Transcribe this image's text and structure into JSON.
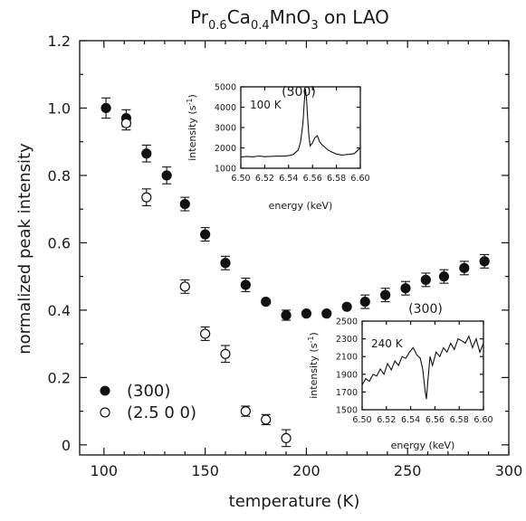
{
  "chart_data": [
    {
      "type": "scatter",
      "title": "Pr",
      "title_parts": {
        "base1": "Pr",
        "sub1": "0.6",
        "base2": "Ca",
        "sub2": "0.4",
        "base3": "MnO",
        "sub3": "3",
        "suffix": " on LAO"
      },
      "xlabel": "temperature (K)",
      "ylabel": "normalized peak intensity",
      "xlim": [
        88,
        300
      ],
      "ylim": [
        -0.03,
        1.2
      ],
      "xticks": [
        100,
        150,
        200,
        250,
        300
      ],
      "xtick_labels": [
        "100",
        "150",
        "200",
        "250",
        "300"
      ],
      "yticks": [
        0,
        0.2,
        0.4,
        0.6,
        0.8,
        1.0,
        1.2
      ],
      "ytick_labels": [
        "0",
        "0.2",
        "0.4",
        "0.6",
        "0.8",
        "1.0",
        "1.2"
      ],
      "grid": false,
      "legend_position": "bottom-left",
      "series": [
        {
          "name": "(300)",
          "marker": "filled-circle",
          "x": [
            101,
            111,
            121,
            131,
            140,
            150,
            160,
            170,
            180,
            190,
            200,
            210,
            220,
            229,
            239,
            249,
            259,
            268,
            278,
            288
          ],
          "y": [
            1.0,
            0.97,
            0.865,
            0.8,
            0.715,
            0.625,
            0.54,
            0.475,
            0.425,
            0.385,
            0.39,
            0.39,
            0.41,
            0.425,
            0.445,
            0.465,
            0.49,
            0.5,
            0.525,
            0.545
          ],
          "err": [
            0.03,
            0.025,
            0.025,
            0.025,
            0.02,
            0.02,
            0.02,
            0.02,
            0,
            0.015,
            0,
            0,
            0,
            0.02,
            0.02,
            0.02,
            0.02,
            0.02,
            0.02,
            0.02
          ]
        },
        {
          "name": "(2.5 0 0)",
          "marker": "open-circle",
          "x": [
            111,
            121,
            140,
            150,
            160,
            170,
            180,
            190
          ],
          "y": [
            0.955,
            0.735,
            0.47,
            0.33,
            0.27,
            0.1,
            0.075,
            0.02
          ],
          "err": [
            0.02,
            0.025,
            0.02,
            0.02,
            0.025,
            0.015,
            0.015,
            0.025
          ]
        }
      ]
    },
    {
      "type": "line",
      "title": "(300)",
      "annotation": "100 K",
      "xlabel": "energy (keV)",
      "ylabel": "intensity (s",
      "ylabel_superscript": "-1",
      "ylabel_suffix": ")",
      "xlim": [
        6.5,
        6.6
      ],
      "ylim": [
        1000,
        5000
      ],
      "xtick_labels": [
        "6.50",
        "6.52",
        "6.54",
        "6.56",
        "6.58",
        "6.60"
      ],
      "ytick_labels": [
        "1000",
        "2000",
        "3000",
        "4000",
        "5000"
      ],
      "xticks": [
        6.5,
        6.52,
        6.54,
        6.56,
        6.58,
        6.6
      ],
      "yticks": [
        1000,
        2000,
        3000,
        4000,
        5000
      ],
      "x": [
        6.5,
        6.505,
        6.51,
        6.515,
        6.52,
        6.525,
        6.53,
        6.535,
        6.54,
        6.544,
        6.548,
        6.55,
        6.552,
        6.553,
        6.554,
        6.555,
        6.556,
        6.557,
        6.558,
        6.56,
        6.562,
        6.564,
        6.566,
        6.568,
        6.57,
        6.573,
        6.576,
        6.58,
        6.585,
        6.59,
        6.595,
        6.598,
        6.6
      ],
      "y": [
        1550,
        1580,
        1560,
        1600,
        1570,
        1580,
        1600,
        1590,
        1620,
        1680,
        1900,
        2300,
        3200,
        4200,
        4900,
        4400,
        3400,
        2600,
        2100,
        2250,
        2500,
        2600,
        2300,
        2150,
        2050,
        1900,
        1800,
        1700,
        1650,
        1680,
        1720,
        1900,
        2000
      ]
    },
    {
      "type": "line",
      "title": "(300)",
      "annotation": "240 K",
      "xlabel": "energy (keV)",
      "ylabel": "intensity (s",
      "ylabel_superscript": "-1",
      "ylabel_suffix": ")",
      "xlim": [
        6.5,
        6.6
      ],
      "ylim": [
        1500,
        2500
      ],
      "xtick_labels": [
        "6.50",
        "6.52",
        "6.54",
        "6.56",
        "6.58",
        "6.60"
      ],
      "ytick_labels": [
        "1500",
        "1700",
        "1900",
        "2100",
        "2300",
        "2500"
      ],
      "xticks": [
        6.5,
        6.52,
        6.54,
        6.56,
        6.58,
        6.6
      ],
      "yticks": [
        1500,
        1700,
        1900,
        2100,
        2300,
        2500
      ],
      "x": [
        6.5,
        6.503,
        6.506,
        6.509,
        6.512,
        6.515,
        6.518,
        6.521,
        6.524,
        6.527,
        6.53,
        6.533,
        6.536,
        6.539,
        6.542,
        6.545,
        6.548,
        6.55,
        6.552,
        6.553,
        6.554,
        6.556,
        6.558,
        6.561,
        6.564,
        6.567,
        6.57,
        6.573,
        6.576,
        6.579,
        6.582,
        6.585,
        6.588,
        6.591,
        6.594,
        6.597,
        6.6
      ],
      "y": [
        1780,
        1850,
        1820,
        1900,
        1880,
        1960,
        1900,
        2020,
        1950,
        2050,
        2000,
        2100,
        2080,
        2150,
        2200,
        2120,
        2080,
        1950,
        1700,
        1620,
        1800,
        2100,
        2000,
        2150,
        2100,
        2200,
        2150,
        2250,
        2180,
        2300,
        2280,
        2250,
        2330,
        2200,
        2300,
        2150,
        2250
      ]
    }
  ]
}
